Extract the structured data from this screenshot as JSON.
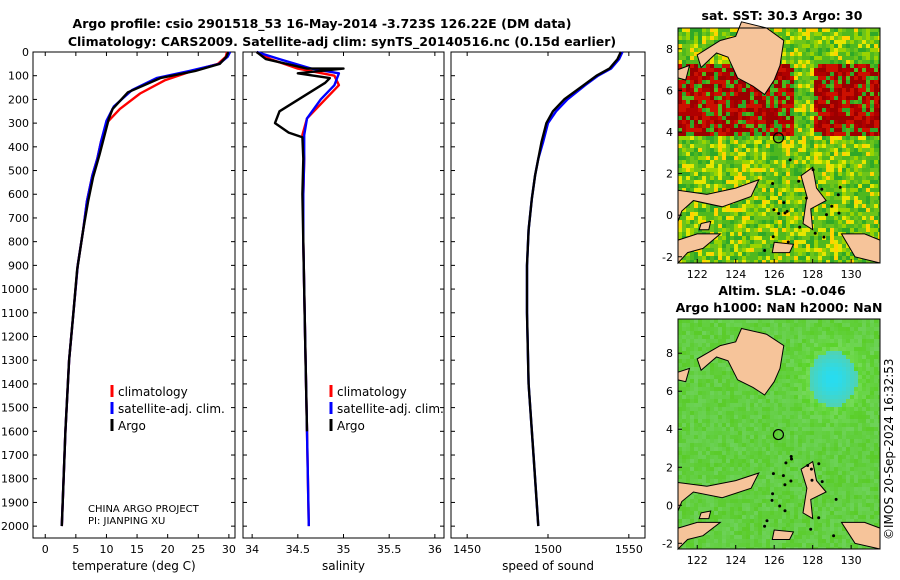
{
  "title_line1": "Argo profile: csio 2901518_53 16-May-2014 -3.723S 126.22E (DM data)",
  "title_line2": "Climatology: CARS2009. Satellite-adj clim: synTS_20140516.nc (0.15d earlier)",
  "credit_line1": "CHINA ARGO PROJECT",
  "credit_line2": "PI: JIANPING XU",
  "watermark": "©IMOS 20-Sep-2024 16:32:53",
  "colors": {
    "climatology": "#ff0000",
    "satellite": "#0000ff",
    "argo": "#000000",
    "land": "#f6c49a"
  },
  "legend": [
    "climatology",
    "satellite-adj. clim.",
    "Argo"
  ],
  "depth_ticks": [
    0,
    100,
    200,
    300,
    400,
    500,
    600,
    700,
    800,
    900,
    1000,
    1100,
    1200,
    1300,
    1400,
    1500,
    1600,
    1700,
    1800,
    1900,
    2000
  ],
  "chart_data": [
    {
      "type": "line",
      "xlabel": "temperature (deg C)",
      "ylabel": "depth",
      "xlim": [
        -2,
        31
      ],
      "ylim": [
        2050,
        0
      ],
      "xticks": [
        0,
        5,
        10,
        15,
        20,
        25,
        30
      ],
      "series": [
        {
          "name": "climatology",
          "color": "#ff0000",
          "x": [
            29.7,
            29.5,
            28.2,
            24,
            19.5,
            15.5,
            12.2,
            10,
            9.1,
            8.5,
            7.7,
            6.8,
            6.2,
            5.3,
            4.6,
            3.9,
            3.3,
            2.85,
            2.7
          ],
          "depth": [
            0,
            20,
            50,
            80,
            120,
            175,
            240,
            300,
            380,
            450,
            520,
            630,
            750,
            900,
            1100,
            1300,
            1600,
            1900,
            2000
          ]
        },
        {
          "name": "satellite-adj. clim.",
          "color": "#0000ff",
          "x": [
            30.2,
            29.8,
            28.4,
            23.5,
            18.2,
            14.2,
            11.2,
            10,
            9.1,
            8.5,
            7.7,
            6.8,
            6.2,
            5.3,
            4.6,
            3.9,
            3.3,
            2.85,
            2.7
          ],
          "depth": [
            0,
            20,
            50,
            80,
            110,
            160,
            230,
            290,
            380,
            450,
            520,
            630,
            750,
            900,
            1100,
            1300,
            1600,
            1900,
            2000
          ]
        },
        {
          "name": "Argo",
          "color": "#000000",
          "x": [
            29.9,
            29.6,
            28.5,
            24.5,
            18.8,
            13.5,
            11,
            10.4,
            9.6,
            8.9,
            7.8,
            7,
            6.2,
            5.2,
            4.6,
            3.9,
            3.3,
            2.85,
            2.7
          ],
          "depth": [
            0,
            20,
            50,
            80,
            110,
            170,
            240,
            280,
            360,
            430,
            530,
            630,
            750,
            920,
            1100,
            1300,
            1600,
            1900,
            2000
          ]
        }
      ]
    },
    {
      "type": "line",
      "xlabel": "salinity",
      "ylabel": "depth",
      "xlim": [
        33.9,
        36.1
      ],
      "ylim": [
        2050,
        0
      ],
      "xticks": [
        34,
        34.5,
        35,
        35.5,
        36
      ],
      "series": [
        {
          "name": "climatology",
          "color": "#ff0000",
          "x": [
            34.05,
            34.2,
            34.5,
            34.9,
            34.95,
            34.8,
            34.6,
            34.55,
            34.57,
            34.56,
            34.56,
            34.58,
            34.6,
            34.62
          ],
          "depth": [
            0,
            30,
            70,
            100,
            140,
            200,
            280,
            350,
            450,
            600,
            800,
            1200,
            1600,
            2000
          ]
        },
        {
          "name": "satellite-adj. clim.",
          "color": "#0000ff",
          "x": [
            34.05,
            34.3,
            34.65,
            34.95,
            34.9,
            34.75,
            34.6,
            34.57,
            34.57,
            34.56,
            34.56,
            34.58,
            34.6,
            34.62
          ],
          "depth": [
            0,
            30,
            70,
            90,
            140,
            200,
            280,
            350,
            450,
            600,
            800,
            1200,
            1600,
            2000
          ]
        },
        {
          "name": "Argo",
          "color": "#000000",
          "x": [
            34.05,
            34.15,
            34.6,
            35,
            34.5,
            34.85,
            34.8,
            34.3,
            34.25,
            34.4,
            34.55,
            34.56,
            34.55,
            34.56,
            34.58,
            34.6
          ],
          "depth": [
            0,
            30,
            70,
            70,
            90,
            110,
            130,
            250,
            300,
            340,
            360,
            450,
            600,
            800,
            1200,
            1600
          ]
        }
      ]
    },
    {
      "type": "line",
      "xlabel": "speed of sound",
      "ylabel": "depth",
      "xlim": [
        1440,
        1560
      ],
      "ylim": [
        2050,
        0
      ],
      "xticks": [
        1450,
        1500,
        1550
      ],
      "series": [
        {
          "name": "satellite-adj. clim.",
          "color": "#0000ff",
          "x": [
            1546,
            1544,
            1539,
            1531,
            1523,
            1512,
            1505,
            1500,
            1497,
            1494,
            1492,
            1490,
            1488,
            1487,
            1487,
            1488,
            1491,
            1494
          ],
          "depth": [
            0,
            30,
            70,
            100,
            140,
            200,
            250,
            300,
            380,
            450,
            520,
            620,
            750,
            900,
            1100,
            1400,
            1700,
            2000
          ]
        },
        {
          "name": "Argo",
          "color": "#000000",
          "x": [
            1545,
            1543,
            1538,
            1530,
            1522,
            1510,
            1503,
            1499,
            1496,
            1494,
            1492,
            1490,
            1488,
            1487,
            1487,
            1488,
            1491,
            1494
          ],
          "depth": [
            0,
            30,
            70,
            100,
            140,
            200,
            250,
            300,
            380,
            450,
            520,
            620,
            750,
            900,
            1100,
            1400,
            1700,
            2000
          ]
        }
      ]
    },
    {
      "type": "heatmap",
      "title": "sat. SST: 30.3 Argo: 30",
      "xlim": [
        121,
        131.5
      ],
      "ylim": [
        -2.3,
        9
      ],
      "xticks": [
        122,
        124,
        126,
        128,
        130
      ],
      "yticks": [
        -2,
        0,
        2,
        4,
        6,
        8
      ],
      "marker": {
        "lon": 126.22,
        "lat": 3.72
      }
    },
    {
      "type": "heatmap",
      "title": "Altim. SLA: -0.046",
      "subtitle": "Argo h1000: NaN h2000: NaN",
      "xlim": [
        121,
        131.5
      ],
      "ylim": [
        -2.3,
        9.8
      ],
      "xticks": [
        122,
        124,
        126,
        128,
        130
      ],
      "yticks": [
        -2,
        0,
        2,
        4,
        6,
        8
      ],
      "marker": {
        "lon": 126.22,
        "lat": 3.72
      }
    }
  ]
}
